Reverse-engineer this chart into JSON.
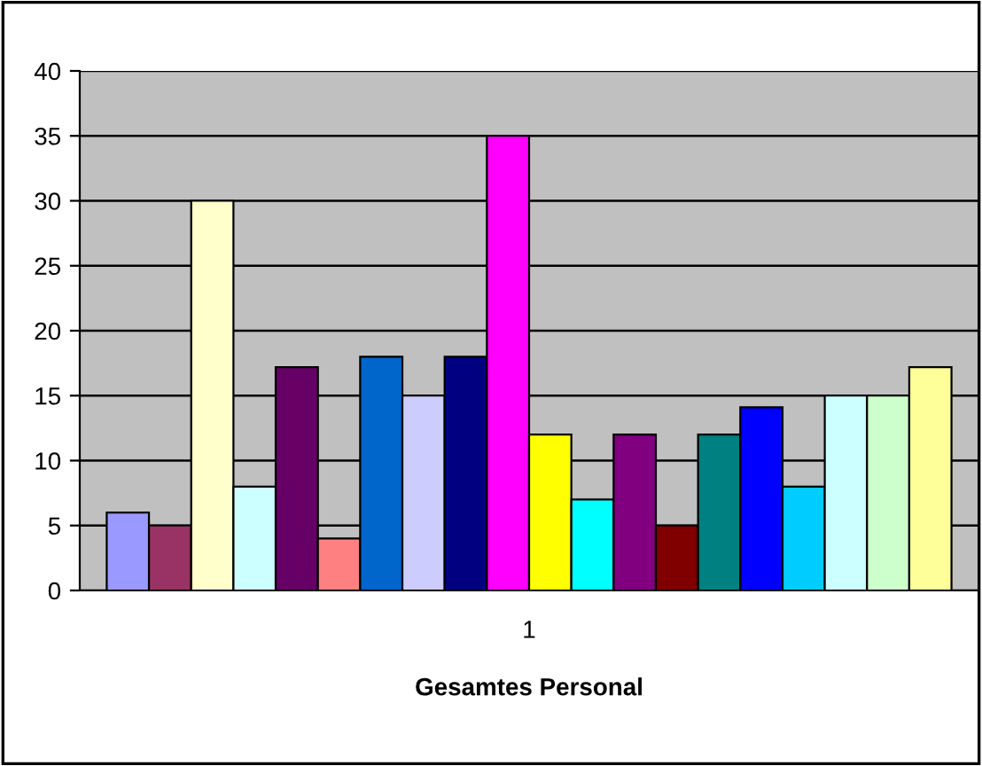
{
  "chart_data": {
    "type": "bar",
    "xlabel": "Gesamtes Personal",
    "categories": [
      "1"
    ],
    "series": [
      {
        "color": "#9999ff",
        "values": [
          6
        ]
      },
      {
        "color": "#993366",
        "values": [
          5
        ]
      },
      {
        "color": "#ffffcc",
        "values": [
          30
        ]
      },
      {
        "color": "#ccffff",
        "values": [
          8
        ]
      },
      {
        "color": "#660066",
        "values": [
          17.2
        ]
      },
      {
        "color": "#ff8080",
        "values": [
          4
        ]
      },
      {
        "color": "#0066cc",
        "values": [
          18
        ]
      },
      {
        "color": "#ccccff",
        "values": [
          15
        ]
      },
      {
        "color": "#000080",
        "values": [
          18
        ]
      },
      {
        "color": "#ff00ff",
        "values": [
          35
        ]
      },
      {
        "color": "#ffff00",
        "values": [
          12
        ]
      },
      {
        "color": "#00ffff",
        "values": [
          7
        ]
      },
      {
        "color": "#800080",
        "values": [
          12
        ]
      },
      {
        "color": "#800000",
        "values": [
          5
        ]
      },
      {
        "color": "#008080",
        "values": [
          12
        ]
      },
      {
        "color": "#0000ff",
        "values": [
          14.1
        ]
      },
      {
        "color": "#00ccff",
        "values": [
          8
        ]
      },
      {
        "color": "#ccffff",
        "values": [
          15
        ]
      },
      {
        "color": "#ccffcc",
        "values": [
          15
        ]
      },
      {
        "color": "#ffff99",
        "values": [
          17.2
        ]
      }
    ],
    "ylim": [
      0,
      40
    ],
    "yticks": [
      0,
      5,
      10,
      15,
      20,
      25,
      30,
      35,
      40
    ],
    "grid": "y",
    "legend": false
  }
}
